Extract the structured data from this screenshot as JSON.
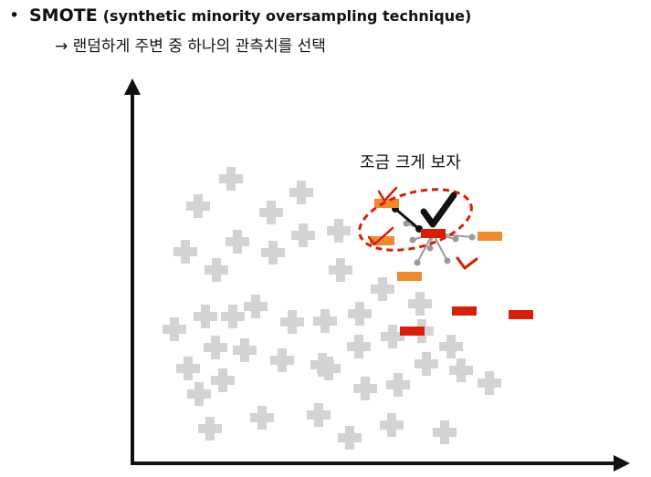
{
  "slide": {
    "bullet": "•",
    "title": "SMOTE",
    "title_desc": "(synthetic minority oversampling technique)",
    "sub_arrow": "→",
    "sub_text": "랜덤하게 주변 중 하나의 관측치를 선택",
    "zoom_label": "조금 크게 보자"
  },
  "colors": {
    "majority": "#d3d3d6",
    "minority": "#d81e05",
    "minority_light": "#f08a2c",
    "check_black": "#111111",
    "check_red": "#d81e05",
    "link_gray": "#9a9a9a",
    "ellipse": "#d81e05",
    "axis": "#111111"
  },
  "legend_free_marks": {
    "majority_symbol": "plus",
    "minority_symbol": "dash"
  }
}
